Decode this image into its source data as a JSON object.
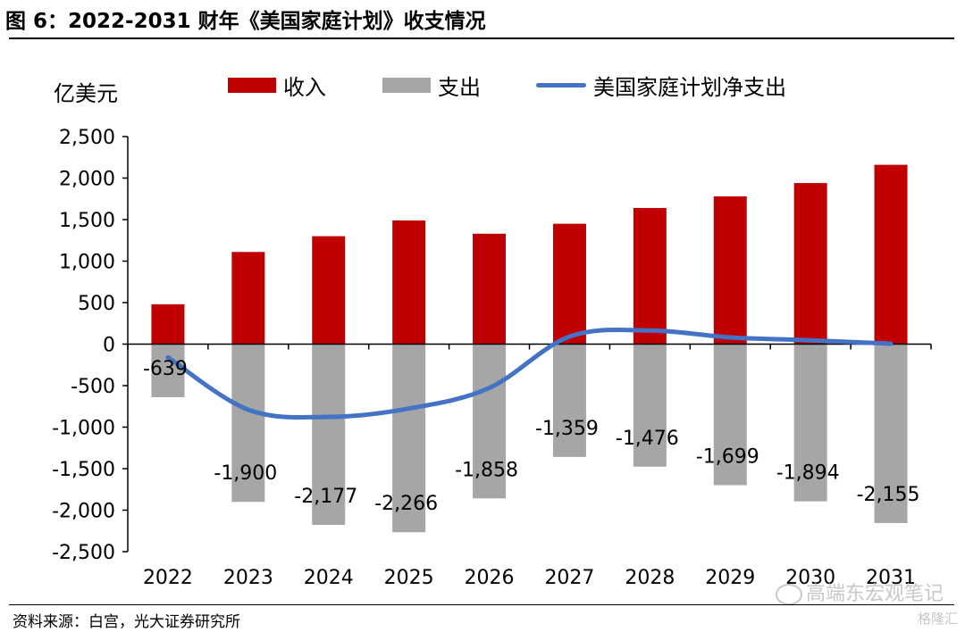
{
  "title": "图 6：2022-2031 财年《美国家庭计划》收支情况",
  "source": "资料来源：白宫，光大证券研究所",
  "watermark": "高端东宏观笔记",
  "watermark2": "格隆汇",
  "colors": {
    "income": "#C00000",
    "expense": "#A6A6A6",
    "net": "#4472C4"
  },
  "chart_data": {
    "type": "bar",
    "unit_label": "亿美元",
    "categories": [
      "2022",
      "2023",
      "2024",
      "2025",
      "2026",
      "2027",
      "2028",
      "2029",
      "2030",
      "2031"
    ],
    "series": [
      {
        "name": "收入",
        "kind": "bar",
        "values": [
          480,
          1110,
          1300,
          1490,
          1330,
          1450,
          1640,
          1780,
          1940,
          2160
        ]
      },
      {
        "name": "支出",
        "kind": "bar",
        "values": [
          -639,
          -1900,
          -2177,
          -2266,
          -1858,
          -1359,
          -1476,
          -1699,
          -1894,
          -2155
        ],
        "labels": [
          "-639",
          "-1,900",
          "-2,177",
          "-2,266",
          "-1,858",
          "-1,359",
          "-1,476",
          "-1,699",
          "-1,894",
          "-2,155"
        ]
      },
      {
        "name": "美国家庭计划净支出",
        "kind": "line",
        "values": [
          -159,
          -790,
          -877,
          -776,
          -528,
          91,
          164,
          81,
          46,
          5
        ]
      }
    ],
    "ylim": [
      -2500,
      2500
    ],
    "yticks": [
      2500,
      2000,
      1500,
      1000,
      500,
      0,
      -500,
      -1000,
      -1500,
      -2000,
      -2500
    ],
    "ytick_labels": [
      "2,500",
      "2,000",
      "1,500",
      "1,000",
      "500",
      "0",
      "-500",
      "-1,000",
      "-1,500",
      "-2,000",
      "-2,500"
    ],
    "legend_position": "top",
    "grid": false
  }
}
